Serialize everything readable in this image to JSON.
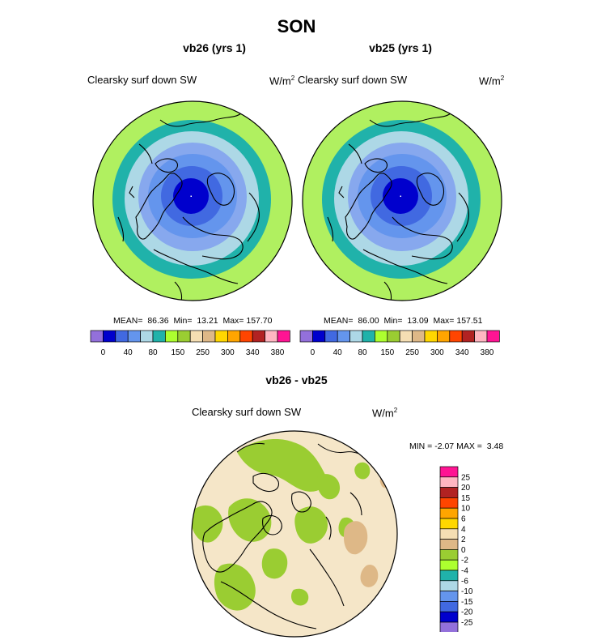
{
  "season_title": "SON",
  "panels": [
    {
      "title": "vb26 (yrs 1)",
      "field_label": "Clearsky surf down SW",
      "units_base": "W/m",
      "units_exp": "2",
      "stats": {
        "mean": "86.36",
        "min": "13.21",
        "max": "157.70"
      }
    },
    {
      "title": "vb25 (yrs 1)",
      "field_label": "Clearsky surf down SW",
      "units_base": "W/m",
      "units_exp": "2",
      "stats": {
        "mean": "86.00",
        "min": "13.09",
        "max": "157.51"
      }
    }
  ],
  "stat_labels": {
    "mean": "MEAN=",
    "min": "Min=",
    "max": "Max="
  },
  "top_colorbar": {
    "colors": [
      "#9370db",
      "#0000cd",
      "#4169e1",
      "#6495ed",
      "#add8e6",
      "#20b2aa",
      "#adff2f",
      "#9acd32",
      "#f5deb3",
      "#deb887",
      "#ffd700",
      "#ffa500",
      "#ff4500",
      "#b22222",
      "#ffb6c1",
      "#ff1493"
    ],
    "ticks": [
      "0",
      "40",
      "80",
      "150",
      "250",
      "300",
      "340",
      "380"
    ]
  },
  "diff_panel": {
    "title": "vb26 - vb25",
    "field_label": "Clearsky surf down SW",
    "units_base": "W/m",
    "units_exp": "2",
    "min_label": "MIN =",
    "min_value": "-2.07",
    "max_label": "MAX =",
    "max_value": "3.48"
  },
  "diff_colorbar": {
    "colors": [
      "#ff1493",
      "#ffb6c1",
      "#b22222",
      "#ff4500",
      "#ffa500",
      "#ffd700",
      "#f5deb3",
      "#deb887",
      "#9acd32",
      "#adff2f",
      "#20b2aa",
      "#add8e6",
      "#6495ed",
      "#4169e1",
      "#0000cd",
      "#9370db"
    ],
    "ticks": [
      "25",
      "20",
      "15",
      "10",
      "6",
      "4",
      "2",
      "0",
      "-2",
      "-4",
      "-6",
      "-10",
      "-15",
      "-20",
      "-25"
    ]
  }
}
